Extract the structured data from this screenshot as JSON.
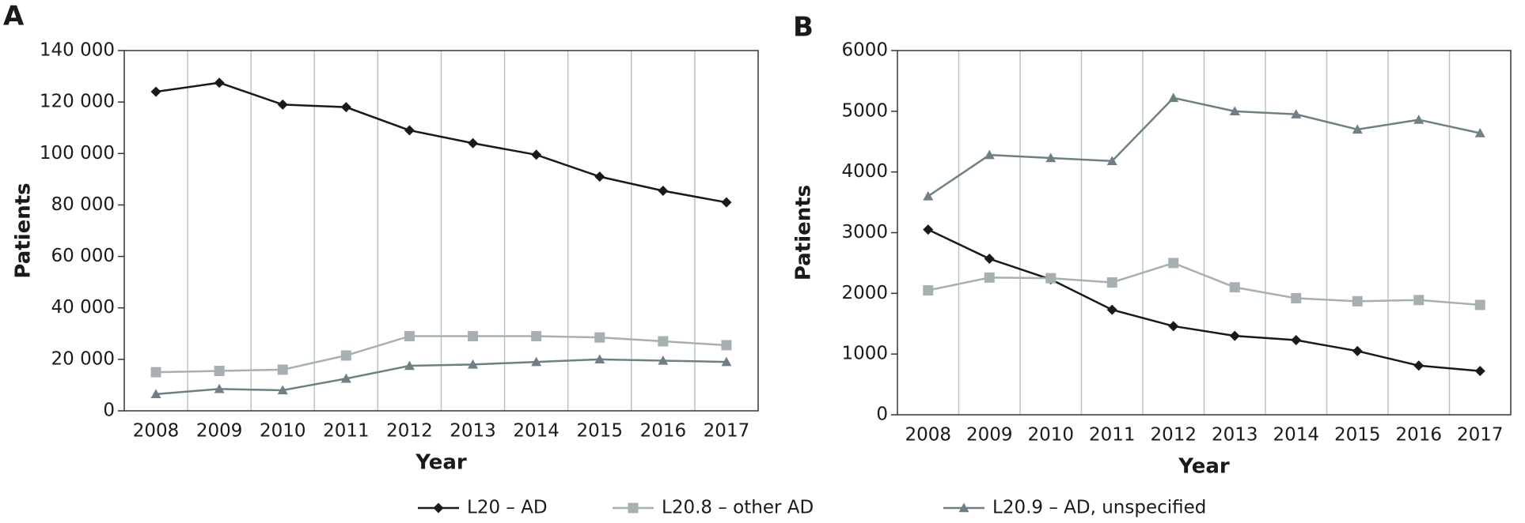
{
  "chart_data": [
    {
      "type": "line",
      "title": "A",
      "x_label": "Year",
      "y_label": "Patients",
      "categories": [
        "2008",
        "2009",
        "2010",
        "2011",
        "2012",
        "2013",
        "2014",
        "2015",
        "2016",
        "2017"
      ],
      "ylim": [
        0,
        140000
      ],
      "yticks": [
        0,
        {
          "value": 20000,
          "label": "20 000"
        },
        {
          "value": 40000,
          "label": "40 000"
        },
        {
          "value": 60000,
          "label": "60 000"
        },
        {
          "value": 80000,
          "label": "80 000"
        },
        {
          "value": 100000,
          "label": "100 000"
        },
        {
          "value": 120000,
          "label": "120 000"
        },
        {
          "value": 140000,
          "label": "140 000"
        }
      ],
      "grid": "vertical",
      "legend": "bottom",
      "series": [
        {
          "name": "L20 – AD",
          "color": "#1a1a1a",
          "marker": "diamond",
          "values": [
            124000,
            127500,
            119000,
            118000,
            109000,
            104000,
            99500,
            91000,
            85500,
            81000
          ]
        },
        {
          "name": "L20.8 – other AD",
          "color": "#a6b0b3",
          "marker": "square",
          "values": [
            15000,
            15500,
            16000,
            21500,
            29000,
            29000,
            29000,
            28500,
            27000,
            25500
          ]
        },
        {
          "name": "L20.9 – AD, unspecified",
          "color": "#6e8084",
          "marker": "triangle",
          "values": [
            6500,
            8500,
            8000,
            12500,
            17500,
            18000,
            19000,
            20000,
            19500,
            19000
          ]
        }
      ]
    },
    {
      "type": "line",
      "title": "B",
      "x_label": "Year",
      "y_label": "Patients",
      "categories": [
        "2008",
        "2009",
        "2010",
        "2011",
        "2012",
        "2013",
        "2014",
        "2015",
        "2016",
        "2017"
      ],
      "ylim": [
        0,
        6000
      ],
      "yticks": [
        0,
        1000,
        2000,
        3000,
        4000,
        5000,
        6000
      ],
      "grid": "vertical",
      "series": [
        {
          "color": "#1a1a1a",
          "marker": "diamond",
          "values": [
            3050,
            2570,
            2230,
            1730,
            1460,
            1300,
            1230,
            1050,
            810,
            720
          ]
        },
        {
          "color": "#a6b0b3",
          "marker": "square",
          "values": [
            2050,
            2260,
            2250,
            2180,
            2500,
            2100,
            1920,
            1870,
            1890,
            1810
          ]
        },
        {
          "color": "#6e8084",
          "marker": "triangle",
          "values": [
            3600,
            4280,
            4230,
            4180,
            5220,
            5000,
            4950,
            4700,
            4860,
            4640
          ]
        }
      ]
    }
  ]
}
